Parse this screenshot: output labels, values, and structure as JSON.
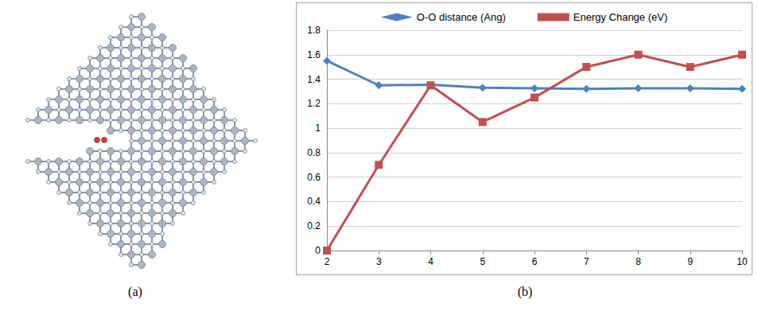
{
  "panels": {
    "a": {
      "label": "(a)"
    },
    "b": {
      "label": "(b)"
    }
  },
  "chart_data": {
    "type": "line",
    "categories": [
      2,
      3,
      4,
      5,
      6,
      7,
      8,
      9,
      10
    ],
    "series": [
      {
        "name": "O-O distance (Ang)",
        "color": "#4f81bd",
        "marker": "diamond",
        "values": [
          1.55,
          1.35,
          1.355,
          1.33,
          1.325,
          1.32,
          1.325,
          1.325,
          1.32
        ]
      },
      {
        "name": "Energy Change (eV)",
        "color": "#c0504d",
        "marker": "square",
        "values": [
          0,
          0.7,
          1.35,
          1.05,
          1.25,
          1.5,
          1.6,
          1.5,
          1.6
        ]
      }
    ],
    "ylim": [
      0,
      1.8
    ],
    "yticks": [
      0,
      0.2,
      0.4,
      0.6,
      0.8,
      1,
      1.2,
      1.4,
      1.6,
      1.8
    ],
    "grid": true,
    "legend": "top"
  }
}
